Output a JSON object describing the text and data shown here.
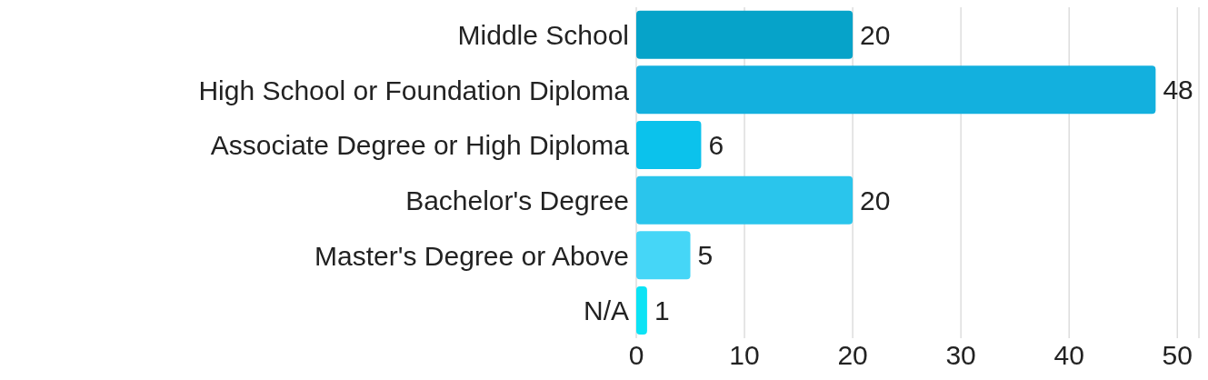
{
  "chart_data": {
    "type": "bar",
    "orientation": "horizontal",
    "categories": [
      "Middle School",
      "High School or Foundation Diploma",
      "Associate Degree or High Diploma",
      "Bachelor's Degree",
      "Master's Degree or Above",
      "N/A"
    ],
    "values": [
      20,
      48,
      6,
      20,
      5,
      1
    ],
    "colors": [
      "#06a3c9",
      "#13b0de",
      "#0bc2ec",
      "#2ac5ec",
      "#45d6f7",
      "#0ce3f5"
    ],
    "xlim": [
      0,
      52
    ],
    "xticks": [
      0,
      10,
      20,
      30,
      40,
      50
    ],
    "grid": "x",
    "data_labels": true
  }
}
